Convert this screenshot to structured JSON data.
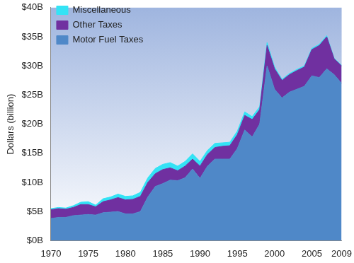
{
  "chart_data": {
    "type": "area",
    "y_label": "Dollars (billion)",
    "x": [
      1970,
      1971,
      1972,
      1973,
      1974,
      1975,
      1976,
      1977,
      1978,
      1979,
      1980,
      1981,
      1982,
      1983,
      1984,
      1985,
      1986,
      1987,
      1988,
      1989,
      1990,
      1991,
      1992,
      1993,
      1994,
      1995,
      1996,
      1997,
      1998,
      1999,
      2000,
      2001,
      2002,
      2003,
      2004,
      2005,
      2006,
      2007,
      2008,
      2009
    ],
    "series": [
      {
        "name": "Motor Fuel Taxes",
        "color": "#4f88c8",
        "values": [
          3.8,
          4.0,
          4.0,
          4.3,
          4.4,
          4.5,
          4.4,
          4.8,
          4.9,
          5.0,
          4.6,
          4.6,
          5.0,
          7.5,
          9.3,
          9.8,
          10.4,
          10.3,
          10.8,
          12.3,
          10.7,
          12.8,
          14.0,
          14.0,
          14.0,
          15.8,
          19.0,
          17.8,
          20.0,
          30.0,
          26.0,
          24.5,
          25.5,
          26.0,
          26.5,
          28.3,
          28.0,
          29.5,
          28.5,
          27.0
        ]
      },
      {
        "name": "Other Taxes",
        "color": "#7030a0",
        "values": [
          1.5,
          1.5,
          1.4,
          1.4,
          1.8,
          1.7,
          1.4,
          1.9,
          2.1,
          2.4,
          2.4,
          2.5,
          2.6,
          2.5,
          2.2,
          2.4,
          2.1,
          1.7,
          2.0,
          1.7,
          2.1,
          2.0,
          2.0,
          2.2,
          2.3,
          2.4,
          2.5,
          3.0,
          2.5,
          3.5,
          3.5,
          3.0,
          3.0,
          3.2,
          3.3,
          4.5,
          5.5,
          5.5,
          2.7,
          3.0
        ]
      },
      {
        "name": "Miscellaneous",
        "color": "#33e3f5",
        "values": [
          0.2,
          0.2,
          0.2,
          0.3,
          0.4,
          0.5,
          0.3,
          0.5,
          0.5,
          0.6,
          0.6,
          0.6,
          0.7,
          0.8,
          0.9,
          0.9,
          0.9,
          0.8,
          0.8,
          0.9,
          0.8,
          0.7,
          0.7,
          0.6,
          0.6,
          0.6,
          0.6,
          0.5,
          0.5,
          0.5,
          0.3,
          0.2,
          0.2,
          0.2,
          0.2,
          0.2,
          0.2,
          0.2,
          0.1,
          0.1
        ]
      }
    ],
    "xlim": [
      1970,
      2009
    ],
    "xticks": [
      1970,
      1975,
      1980,
      1985,
      1990,
      1995,
      2000,
      2005,
      2009
    ],
    "ylim": [
      0,
      40
    ],
    "yticks": [
      {
        "value": 0,
        "label": "$0B"
      },
      {
        "value": 5,
        "label": "$5B"
      },
      {
        "value": 10,
        "label": "$10B"
      },
      {
        "value": 15,
        "label": "$15B"
      },
      {
        "value": 20,
        "label": "$20B"
      },
      {
        "value": 25,
        "label": "$25B"
      },
      {
        "value": 30,
        "label": "$30B"
      },
      {
        "value": 35,
        "label": "$35B"
      },
      {
        "value": 40,
        "label": "$40B"
      }
    ],
    "stacked": true,
    "grid": false,
    "legend": "upper left"
  }
}
